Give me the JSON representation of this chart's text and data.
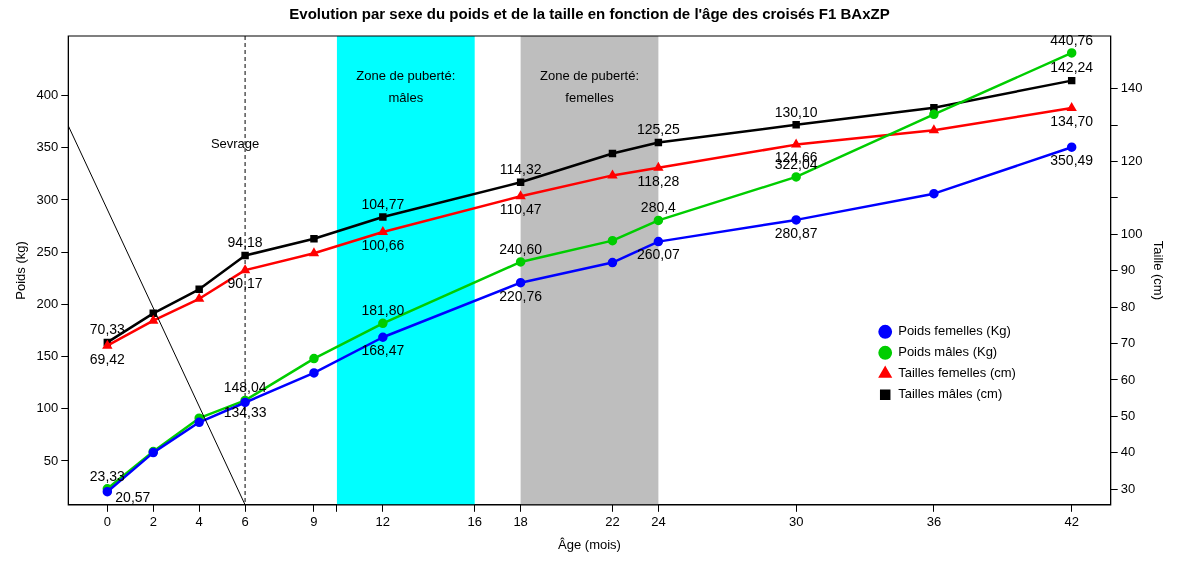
{
  "chart_data": {
    "type": "line",
    "title": "Evolution par sexe du poids et de la taille en fonction de l'âge des croisés F1 BAxZP",
    "xlabel": "Âge (mois)",
    "ylabel": "Poids (kg)",
    "y2label": "Taille (cm)",
    "xlim": [
      -1.7,
      43.7
    ],
    "xticks": [
      0,
      2,
      4,
      6,
      9,
      {
        "value": 10,
        "label": null
      },
      12,
      16,
      18,
      22,
      24,
      30,
      36,
      42
    ],
    "ylim": [
      8,
      457
    ],
    "yticks": [
      50,
      100,
      150,
      200,
      250,
      300,
      350,
      400
    ],
    "y2lim": [
      25.7,
      154.5
    ],
    "y2ticks": [
      30,
      40,
      50,
      60,
      70,
      80,
      90,
      100,
      {
        "value": 110,
        "label": null
      },
      120,
      {
        "value": 130,
        "label": null
      },
      140
    ],
    "grid": false,
    "legend": "right",
    "line_style": "solid",
    "series": [
      {
        "name": "Tailles mâles (cm)",
        "color": "#000000",
        "axis": "y2",
        "marker": "square",
        "x": [
          0,
          2,
          4,
          6,
          9,
          12,
          18,
          22,
          24,
          30,
          36,
          42
        ],
        "values": [
          70.33,
          78.3,
          84.9,
          94.18,
          98.8,
          104.77,
          114.32,
          122.2,
          125.25,
          130.1,
          134.8,
          142.24
        ],
        "value_labels": [
          "70,33",
          null,
          null,
          "94,18",
          null,
          "104,77",
          "114,32",
          null,
          "125,25",
          "130,10",
          null,
          "142,24"
        ]
      },
      {
        "name": "Tailles femelles (cm)",
        "color": "#ff0000",
        "axis": "y2",
        "marker": "triangle",
        "x": [
          0,
          2,
          4,
          6,
          9,
          12,
          18,
          22,
          24,
          30,
          36,
          42
        ],
        "values": [
          69.42,
          76.3,
          82.3,
          90.17,
          94.8,
          100.66,
          110.47,
          116.2,
          118.28,
          124.66,
          128.6,
          134.7
        ],
        "value_labels": [
          "69,42",
          null,
          null,
          "90,17",
          null,
          "100,66",
          "110,47",
          null,
          "118,28",
          "124,66",
          null,
          "134,70"
        ]
      },
      {
        "name": "Poids mâles (Kg)",
        "color": "#00cd00",
        "axis": "y",
        "marker": "circle",
        "x": [
          0,
          2,
          4,
          6,
          9,
          12,
          18,
          22,
          24,
          30,
          36,
          42
        ],
        "values": [
          23.33,
          59,
          91,
          108,
          148.04,
          181.8,
          240.6,
          261,
          280.4,
          322.04,
          382,
          440.76
        ],
        "value_labels": [
          "23,33",
          null,
          null,
          null,
          null,
          "181,80",
          "240,60",
          null,
          "280,4",
          "322,04",
          null,
          "440,76"
        ]
      },
      {
        "name": "Poids femelles (Kg)",
        "color": "#0000ff",
        "axis": "y",
        "marker": "circle",
        "x": [
          0,
          2,
          4,
          6,
          9,
          12,
          18,
          22,
          24,
          30,
          36,
          42
        ],
        "values": [
          20.57,
          58,
          87,
          106,
          134.33,
          168.47,
          220.76,
          240,
          260.07,
          280.87,
          306,
          350.49
        ],
        "value_labels": [
          "20,57",
          null,
          null,
          null,
          null,
          "168,47",
          "220,76",
          null,
          "260,07",
          "280,87",
          null,
          "350,49"
        ]
      },
      {
        "color": "#000000",
        "axis": "y",
        "marker": "none",
        "x": [
          -1.7,
          6
        ],
        "values": [
          371,
          8
        ]
      }
    ],
    "ref_lines": [
      {
        "axis": "x",
        "value": 6,
        "label": "Sevrage",
        "line_style": "dashed",
        "color": "#000000"
      }
    ],
    "bands": [
      {
        "axis": "x",
        "from": 10,
        "to": 16,
        "label": "Zone de puberté:\nmâles",
        "color": "#00ffff"
      },
      {
        "axis": "x",
        "from": 18,
        "to": 24,
        "label": "Zone de puberté:\nfemelles",
        "color": "#bebebe"
      }
    ],
    "annotations": [
      {
        "text": "148,04",
        "x": 6,
        "y": 120
      },
      {
        "text": "134,33",
        "x": 6,
        "y": 96
      }
    ]
  }
}
